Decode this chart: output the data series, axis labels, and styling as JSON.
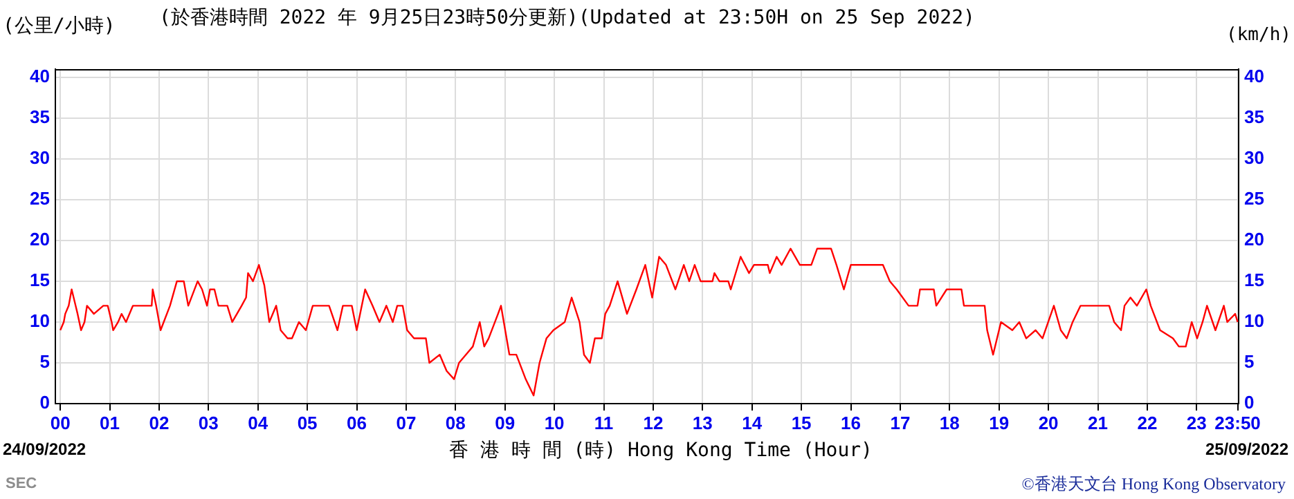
{
  "chart_data": {
    "type": "line",
    "title": "(於香港時間 2022 年 9月25日23時50分更新)(Updated at 23:50H on 25 Sep 2022)",
    "ylabel": "(公里/小時)",
    "y2label": "(km/h)",
    "xlabel": "香 港 時 間 (時)  Hong Kong Time (Hour)",
    "annotations": [
      "24/09/2022",
      "25/09/2022",
      "SEC",
      "©香港天文台 Hong Kong Observatory"
    ],
    "series": [
      {
        "color": "#ff0000",
        "x": [
          0,
          0.07,
          0.1,
          0.17,
          0.23,
          0.31,
          0.35,
          0.42,
          0.49,
          0.54,
          0.68,
          0.87,
          0.96,
          1.04,
          1.07,
          1.17,
          1.24,
          1.33,
          1.47,
          1.85,
          1.87,
          1.94,
          2.03,
          2.22,
          2.36,
          2.5,
          2.59,
          2.78,
          2.87,
          2.97,
          3.03,
          3.12,
          3.2,
          3.38,
          3.48,
          3.67,
          3.76,
          3.8,
          3.9,
          4.02,
          4.13,
          4.23,
          4.37,
          4.46,
          4.6,
          4.69,
          4.83,
          4.97,
          5.11,
          5.44,
          5.61,
          5.72,
          5.9,
          6.0,
          6.17,
          6.32,
          6.46,
          6.6,
          6.73,
          6.82,
          6.93,
          7.02,
          7.16,
          7.4,
          7.47,
          7.68,
          7.82,
          7.97,
          8.07,
          8.35,
          8.49,
          8.58,
          8.67,
          8.86,
          8.92,
          9.09,
          9.23,
          9.42,
          9.58,
          9.7,
          9.84,
          9.98,
          10.21,
          10.35,
          10.51,
          10.6,
          10.72,
          10.82,
          10.96,
          11.03,
          11.12,
          11.28,
          11.47,
          11.66,
          11.84,
          11.98,
          12.12,
          12.26,
          12.45,
          12.62,
          12.73,
          12.84,
          12.96,
          13.2,
          13.24,
          13.34,
          13.52,
          13.57,
          13.77,
          13.94,
          14.04,
          14.32,
          14.36,
          14.5,
          14.6,
          14.78,
          14.97,
          15.2,
          15.32,
          15.6,
          15.71,
          15.86,
          16.0,
          16.65,
          16.79,
          16.93,
          17.17,
          17.35,
          17.4,
          17.68,
          17.73,
          17.94,
          18.24,
          18.29,
          18.71,
          18.76,
          18.88,
          19.04,
          19.27,
          19.41,
          19.55,
          19.74,
          19.88,
          20.11,
          20.25,
          20.37,
          20.49,
          20.65,
          21.23,
          21.33,
          21.47,
          21.54,
          21.66,
          21.79,
          21.98,
          22.07,
          22.26,
          22.52,
          22.64,
          22.78,
          22.9,
          23.01,
          23.12,
          23.21,
          23.38,
          23.55,
          23.62,
          23.78,
          23.83
        ],
        "values": [
          9,
          10,
          11,
          12,
          14,
          12,
          11,
          9,
          10,
          12,
          11,
          12,
          12,
          10,
          9,
          10,
          11,
          10,
          12,
          12,
          14,
          12,
          9,
          12,
          15,
          15,
          12,
          15,
          14,
          12,
          14,
          14,
          12,
          12,
          10,
          12,
          13,
          16,
          15,
          17,
          14.5,
          10,
          12,
          9,
          8,
          8,
          10,
          9,
          12,
          12,
          9,
          12,
          12,
          9,
          14,
          12,
          10,
          12,
          10,
          12,
          12,
          9,
          8,
          8,
          5,
          6,
          4,
          3,
          5,
          7,
          10,
          7,
          8,
          11,
          12,
          6,
          6,
          3,
          1,
          5,
          8,
          9,
          10,
          13,
          10,
          6,
          5,
          8,
          8,
          11,
          12,
          15,
          11,
          14,
          17,
          13,
          18,
          17,
          14,
          17,
          15,
          17,
          15,
          15,
          16,
          15,
          15,
          14,
          18,
          16,
          17,
          17,
          16,
          18,
          17,
          19,
          17,
          17,
          19,
          19,
          17,
          14,
          17,
          17,
          15,
          14,
          12,
          12,
          14,
          14,
          12,
          14,
          14,
          12,
          12,
          9,
          6,
          10,
          9,
          10,
          8,
          9,
          8,
          12,
          9,
          8,
          10,
          12,
          12,
          10,
          9,
          12,
          13,
          12,
          14,
          12,
          9,
          8,
          7,
          7,
          10,
          8,
          10,
          12,
          9,
          12,
          10,
          11,
          10
        ]
      }
    ],
    "xlim": [
      -0.1,
      23.85
    ],
    "xticks": [
      {
        "value": 0,
        "label": "00"
      },
      {
        "value": 1,
        "label": "01"
      },
      {
        "value": 2,
        "label": "02"
      },
      {
        "value": 3,
        "label": "03"
      },
      {
        "value": 4,
        "label": "04"
      },
      {
        "value": 5,
        "label": "05"
      },
      {
        "value": 6,
        "label": "06"
      },
      {
        "value": 7,
        "label": "07"
      },
      {
        "value": 8,
        "label": "08"
      },
      {
        "value": 9,
        "label": "09"
      },
      10,
      11,
      12,
      13,
      14,
      15,
      16,
      17,
      18,
      19,
      20,
      21,
      22,
      23,
      {
        "value": 23.83,
        "label": "23:50"
      }
    ],
    "ylim": [
      0,
      41
    ],
    "yticks": [
      0,
      5,
      10,
      15,
      20,
      25,
      30,
      35,
      40
    ],
    "y2lim": [
      0,
      41
    ],
    "y2ticks": [
      0,
      5,
      10,
      15,
      20,
      25,
      30,
      35,
      40
    ],
    "grid": true,
    "legend": false,
    "marker": "none",
    "line_style": "solid"
  }
}
